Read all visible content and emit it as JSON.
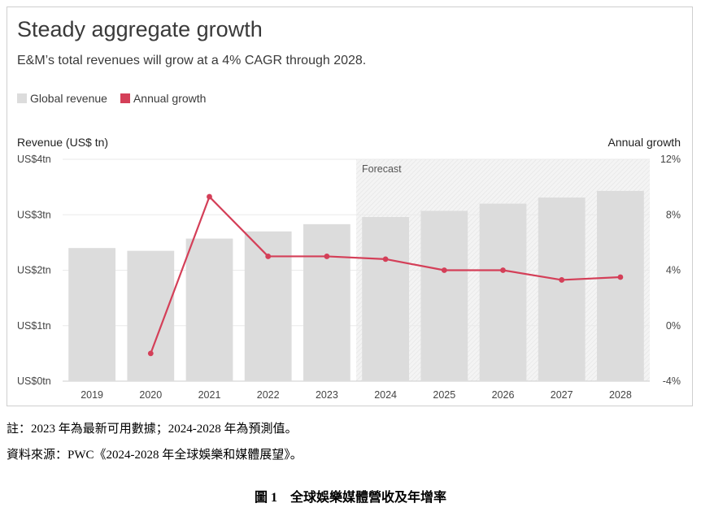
{
  "card": {
    "title": "Steady aggregate growth",
    "subtitle": "E&M’s total revenues will grow at a 4% CAGR through 2028."
  },
  "legend": [
    {
      "label": "Global revenue",
      "color": "#dcdcdc"
    },
    {
      "label": "Annual growth",
      "color": "#d43f58"
    }
  ],
  "chart_data": {
    "type": "bar",
    "categories": [
      "2019",
      "2020",
      "2021",
      "2022",
      "2023",
      "2024",
      "2025",
      "2026",
      "2027",
      "2028"
    ],
    "series": [
      {
        "name": "Global revenue",
        "axis": "left",
        "values": [
          2.4,
          2.35,
          2.57,
          2.7,
          2.83,
          2.96,
          3.07,
          3.2,
          3.31,
          3.43
        ],
        "color": "#dcdcdc"
      },
      {
        "name": "Annual growth",
        "axis": "right",
        "type": "line",
        "values": [
          null,
          -2.0,
          9.3,
          5.0,
          5.0,
          4.8,
          4.0,
          4.0,
          3.3,
          3.5
        ],
        "color": "#d43f58"
      }
    ],
    "ylabel": "Revenue (US$ tn)",
    "y2label": "Annual growth",
    "ylim": [
      0,
      4
    ],
    "y2lim": [
      -4,
      12
    ],
    "yticks": [
      "US$0tn",
      "US$1tn",
      "US$2tn",
      "US$3tn",
      "US$4tn"
    ],
    "y2ticks": [
      "-4%",
      "0%",
      "4%",
      "8%",
      "12%"
    ],
    "forecast_label": "Forecast",
    "forecast_start": "2024",
    "grid": true,
    "legend_position": "top-left"
  },
  "notes": [
    "註：2023 年為最新可用數據；2024-2028 年為預測值。",
    "資料來源：PWC《2024-2028 年全球娛樂和媒體展望》。"
  ],
  "caption": "圖 1　全球娛樂媒體營收及年增率"
}
